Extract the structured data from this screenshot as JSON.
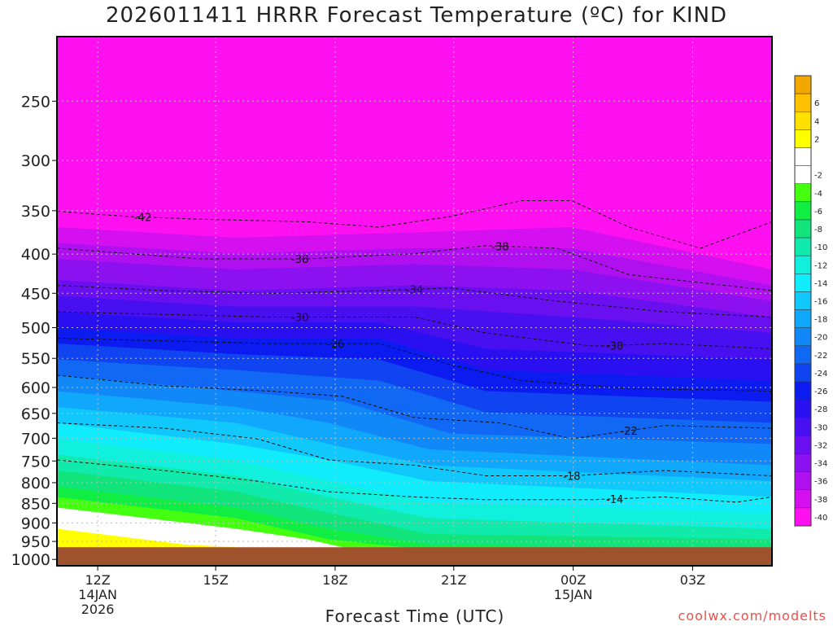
{
  "title": "2026011411 HRRR Forecast Temperature (ºC) for KIND",
  "xlabel": "Forecast Time (UTC)",
  "credit": "coolwx.com/modelts",
  "chart_data": {
    "type": "heatmap",
    "title": "2026011411 HRRR Forecast Temperature (ºC) for KIND",
    "xlabel": "Forecast Time (UTC)",
    "ylabel": "",
    "x_ticks": [
      {
        "label": [
          "12Z",
          "14JAN",
          "2026"
        ],
        "frac": 0.057
      },
      {
        "label": [
          "15Z"
        ],
        "frac": 0.222
      },
      {
        "label": [
          "18Z"
        ],
        "frac": 0.389
      },
      {
        "label": [
          "21Z"
        ],
        "frac": 0.555
      },
      {
        "label": [
          "00Z",
          "15JAN"
        ],
        "frac": 0.722
      },
      {
        "label": [
          "03Z"
        ],
        "frac": 0.889
      }
    ],
    "y_ticks": [
      {
        "label": "250",
        "frac": 0.122
      },
      {
        "label": "300",
        "frac": 0.234
      },
      {
        "label": "350",
        "frac": 0.329
      },
      {
        "label": "400",
        "frac": 0.411
      },
      {
        "label": "450",
        "frac": 0.485
      },
      {
        "label": "500",
        "frac": 0.55
      },
      {
        "label": "550",
        "frac": 0.608
      },
      {
        "label": "600",
        "frac": 0.663
      },
      {
        "label": "650",
        "frac": 0.712
      },
      {
        "label": "700",
        "frac": 0.759
      },
      {
        "label": "750",
        "frac": 0.802
      },
      {
        "label": "800",
        "frac": 0.843
      },
      {
        "label": "850",
        "frac": 0.882
      },
      {
        "label": "900",
        "frac": 0.919
      },
      {
        "label": "950",
        "frac": 0.954
      },
      {
        "label": "1000",
        "frac": 0.988
      }
    ],
    "colorbar": [
      {
        "label": "",
        "color": "#f2a600"
      },
      {
        "label": "6",
        "color": "#ffc000"
      },
      {
        "label": "4",
        "color": "#ffe000"
      },
      {
        "label": "2",
        "color": "#ffff00"
      },
      {
        "label": "",
        "color": "#ffffff"
      },
      {
        "label": "-2",
        "color": "#ffffff"
      },
      {
        "label": "-4",
        "color": "#44ff10"
      },
      {
        "label": "-6",
        "color": "#10ee44"
      },
      {
        "label": "-8",
        "color": "#10e47a"
      },
      {
        "label": "-10",
        "color": "#10eaaa"
      },
      {
        "label": "-12",
        "color": "#10f0dc"
      },
      {
        "label": "-14",
        "color": "#10ecfc"
      },
      {
        "label": "-16",
        "color": "#10c8fc"
      },
      {
        "label": "-18",
        "color": "#10a8fc"
      },
      {
        "label": "-20",
        "color": "#1088f8"
      },
      {
        "label": "-22",
        "color": "#1068f4"
      },
      {
        "label": "-24",
        "color": "#1044f0"
      },
      {
        "label": "-26",
        "color": "#0c1cf0"
      },
      {
        "label": "-28",
        "color": "#2a10f0"
      },
      {
        "label": "-30",
        "color": "#4810f0"
      },
      {
        "label": "-32",
        "color": "#6a10f0"
      },
      {
        "label": "-34",
        "color": "#8c10f0"
      },
      {
        "label": "-36",
        "color": "#b010f0"
      },
      {
        "label": "-38",
        "color": "#d410f0"
      },
      {
        "label": "-40",
        "color": "#ff10f0"
      }
    ],
    "bands": [
      {
        "color": "#ff10f0",
        "pts": [
          [
            0,
            0.0
          ],
          [
            0.25,
            0.0
          ],
          [
            0.5,
            0.0
          ],
          [
            0.75,
            0.0
          ],
          [
            1,
            0.0
          ]
        ]
      },
      {
        "color": "#d410f0",
        "pts": [
          [
            0,
            0.36
          ],
          [
            0.25,
            0.38
          ],
          [
            0.5,
            0.37
          ],
          [
            0.72,
            0.36
          ],
          [
            1,
            0.44
          ]
        ]
      },
      {
        "color": "#b010f0",
        "pts": [
          [
            0,
            0.39
          ],
          [
            0.25,
            0.41
          ],
          [
            0.5,
            0.4
          ],
          [
            0.72,
            0.4
          ],
          [
            1,
            0.47
          ]
        ]
      },
      {
        "color": "#8c10f0",
        "pts": [
          [
            0,
            0.42
          ],
          [
            0.25,
            0.44
          ],
          [
            0.5,
            0.43
          ],
          [
            0.72,
            0.44
          ],
          [
            1,
            0.5
          ]
        ]
      },
      {
        "color": "#6a10f0",
        "pts": [
          [
            0,
            0.46
          ],
          [
            0.25,
            0.48
          ],
          [
            0.5,
            0.47
          ],
          [
            0.72,
            0.48
          ],
          [
            1,
            0.53
          ]
        ]
      },
      {
        "color": "#4810f0",
        "pts": [
          [
            0,
            0.49
          ],
          [
            0.25,
            0.51
          ],
          [
            0.5,
            0.51
          ],
          [
            0.72,
            0.53
          ],
          [
            1,
            0.56
          ]
        ]
      },
      {
        "color": "#2a10f0",
        "pts": [
          [
            0,
            0.52
          ],
          [
            0.25,
            0.54
          ],
          [
            0.45,
            0.54
          ],
          [
            0.6,
            0.59
          ],
          [
            1,
            0.61
          ]
        ]
      },
      {
        "color": "#0c1cf0",
        "pts": [
          [
            0,
            0.55
          ],
          [
            0.25,
            0.57
          ],
          [
            0.45,
            0.57
          ],
          [
            0.6,
            0.63
          ],
          [
            1,
            0.65
          ]
        ]
      },
      {
        "color": "#1044f0",
        "pts": [
          [
            0,
            0.58
          ],
          [
            0.25,
            0.6
          ],
          [
            0.45,
            0.61
          ],
          [
            0.6,
            0.67
          ],
          [
            1,
            0.69
          ]
        ]
      },
      {
        "color": "#1068f4",
        "pts": [
          [
            0,
            0.61
          ],
          [
            0.25,
            0.63
          ],
          [
            0.45,
            0.65
          ],
          [
            0.6,
            0.71
          ],
          [
            1,
            0.73
          ]
        ]
      },
      {
        "color": "#1088f8",
        "pts": [
          [
            0,
            0.64
          ],
          [
            0.25,
            0.67
          ],
          [
            0.4,
            0.69
          ],
          [
            0.55,
            0.75
          ],
          [
            1,
            0.77
          ]
        ]
      },
      {
        "color": "#10a8fc",
        "pts": [
          [
            0,
            0.67
          ],
          [
            0.25,
            0.7
          ],
          [
            0.38,
            0.73
          ],
          [
            0.52,
            0.78
          ],
          [
            1,
            0.81
          ]
        ]
      },
      {
        "color": "#10c8fc",
        "pts": [
          [
            0,
            0.7
          ],
          [
            0.25,
            0.73
          ],
          [
            0.38,
            0.77
          ],
          [
            0.52,
            0.81
          ],
          [
            1,
            0.84
          ]
        ]
      },
      {
        "color": "#10ecfc",
        "pts": [
          [
            0,
            0.73
          ],
          [
            0.25,
            0.77
          ],
          [
            0.38,
            0.8
          ],
          [
            0.52,
            0.84
          ],
          [
            1,
            0.87
          ]
        ]
      },
      {
        "color": "#10f0dc",
        "pts": [
          [
            0,
            0.76
          ],
          [
            0.25,
            0.8
          ],
          [
            0.38,
            0.84
          ],
          [
            0.52,
            0.88
          ],
          [
            1,
            0.9
          ]
        ]
      },
      {
        "color": "#10eaaa",
        "pts": [
          [
            0,
            0.79
          ],
          [
            0.25,
            0.83
          ],
          [
            0.38,
            0.87
          ],
          [
            0.52,
            0.91
          ],
          [
            1,
            0.93
          ]
        ]
      },
      {
        "color": "#10e47a",
        "pts": [
          [
            0,
            0.82
          ],
          [
            0.25,
            0.86
          ],
          [
            0.38,
            0.9
          ],
          [
            0.52,
            0.94
          ],
          [
            1,
            0.95
          ]
        ]
      },
      {
        "color": "#10ee44",
        "pts": [
          [
            0,
            0.85
          ],
          [
            0.25,
            0.89
          ],
          [
            0.38,
            0.93
          ],
          [
            0.52,
            0.96
          ],
          [
            1,
            0.97
          ]
        ]
      },
      {
        "color": "#44ff10",
        "pts": [
          [
            0,
            0.87
          ],
          [
            0.25,
            0.91
          ],
          [
            0.38,
            0.95
          ],
          [
            0.52,
            0.97
          ],
          [
            1,
            0.975
          ]
        ]
      },
      {
        "color": "#ffffff",
        "pts": [
          [
            0,
            0.89
          ],
          [
            0.25,
            0.93
          ],
          [
            0.35,
            0.95
          ],
          [
            0.45,
            0.98
          ],
          [
            1,
            0.98
          ]
        ]
      },
      {
        "color": "#ffff00",
        "pts": [
          [
            0,
            0.93
          ],
          [
            0.18,
            0.96
          ],
          [
            0.32,
            0.97
          ],
          [
            0.38,
            1.0
          ],
          [
            1,
            1.0
          ]
        ]
      },
      {
        "color": "#ffc000",
        "pts": [
          [
            0,
            0.98
          ],
          [
            0.06,
            0.995
          ],
          [
            0.12,
            1.0
          ],
          [
            1,
            1.0
          ]
        ]
      }
    ],
    "contours": [
      {
        "label": "-42",
        "lx": 0.12,
        "pts": [
          [
            0,
            0.33
          ],
          [
            0.1,
            0.34
          ],
          [
            0.2,
            0.345
          ],
          [
            0.35,
            0.35
          ],
          [
            0.45,
            0.36
          ],
          [
            0.55,
            0.34
          ],
          [
            0.65,
            0.31
          ],
          [
            0.72,
            0.31
          ],
          [
            0.8,
            0.36
          ],
          [
            0.9,
            0.4
          ],
          [
            1,
            0.35
          ]
        ]
      },
      {
        "label": "-38",
        "lx": 0.34,
        "pts": [
          [
            0,
            0.4
          ],
          [
            0.1,
            0.41
          ],
          [
            0.2,
            0.42
          ],
          [
            0.35,
            0.42
          ],
          [
            0.5,
            0.41
          ],
          [
            0.6,
            0.395
          ],
          [
            0.7,
            0.4
          ],
          [
            0.8,
            0.45
          ],
          [
            1,
            0.48
          ]
        ]
      },
      {
        "label": "-38",
        "lx": 0.62,
        "pts": []
      },
      {
        "label": "-34",
        "lx": 0.5,
        "pts": [
          [
            0,
            0.47
          ],
          [
            0.15,
            0.48
          ],
          [
            0.3,
            0.485
          ],
          [
            0.45,
            0.48
          ],
          [
            0.55,
            0.475
          ],
          [
            0.7,
            0.5
          ],
          [
            0.85,
            0.52
          ],
          [
            1,
            0.53
          ]
        ]
      },
      {
        "label": "-30",
        "lx": 0.34,
        "pts": [
          [
            0,
            0.52
          ],
          [
            0.15,
            0.525
          ],
          [
            0.3,
            0.53
          ],
          [
            0.5,
            0.53
          ],
          [
            0.6,
            0.56
          ],
          [
            0.75,
            0.585
          ],
          [
            0.85,
            0.58
          ],
          [
            1,
            0.59
          ]
        ]
      },
      {
        "label": "-30",
        "lx": 0.78,
        "pts": []
      },
      {
        "label": "-26",
        "lx": 0.39,
        "pts": [
          [
            0,
            0.57
          ],
          [
            0.15,
            0.575
          ],
          [
            0.3,
            0.58
          ],
          [
            0.45,
            0.58
          ],
          [
            0.55,
            0.62
          ],
          [
            0.65,
            0.65
          ],
          [
            0.8,
            0.665
          ],
          [
            1,
            0.67
          ]
        ]
      },
      {
        "label": "-22",
        "lx": 0.8,
        "pts": [
          [
            0,
            0.64
          ],
          [
            0.15,
            0.66
          ],
          [
            0.3,
            0.67
          ],
          [
            0.4,
            0.68
          ],
          [
            0.5,
            0.72
          ],
          [
            0.62,
            0.73
          ],
          [
            0.72,
            0.76
          ],
          [
            0.85,
            0.735
          ],
          [
            1,
            0.74
          ]
        ]
      },
      {
        "label": "-18",
        "lx": 0.72,
        "pts": [
          [
            0,
            0.73
          ],
          [
            0.15,
            0.74
          ],
          [
            0.28,
            0.76
          ],
          [
            0.38,
            0.8
          ],
          [
            0.5,
            0.81
          ],
          [
            0.6,
            0.83
          ],
          [
            0.72,
            0.83
          ],
          [
            0.85,
            0.82
          ],
          [
            1,
            0.83
          ]
        ]
      },
      {
        "label": "-14",
        "lx": 0.78,
        "pts": [
          [
            0,
            0.8
          ],
          [
            0.15,
            0.82
          ],
          [
            0.28,
            0.84
          ],
          [
            0.38,
            0.86
          ],
          [
            0.5,
            0.87
          ],
          [
            0.6,
            0.875
          ],
          [
            0.75,
            0.875
          ],
          [
            0.85,
            0.87
          ],
          [
            0.95,
            0.88
          ],
          [
            1,
            0.87
          ]
        ]
      }
    ],
    "ground_frac": 0.965,
    "ground_color": "#a0522d"
  }
}
